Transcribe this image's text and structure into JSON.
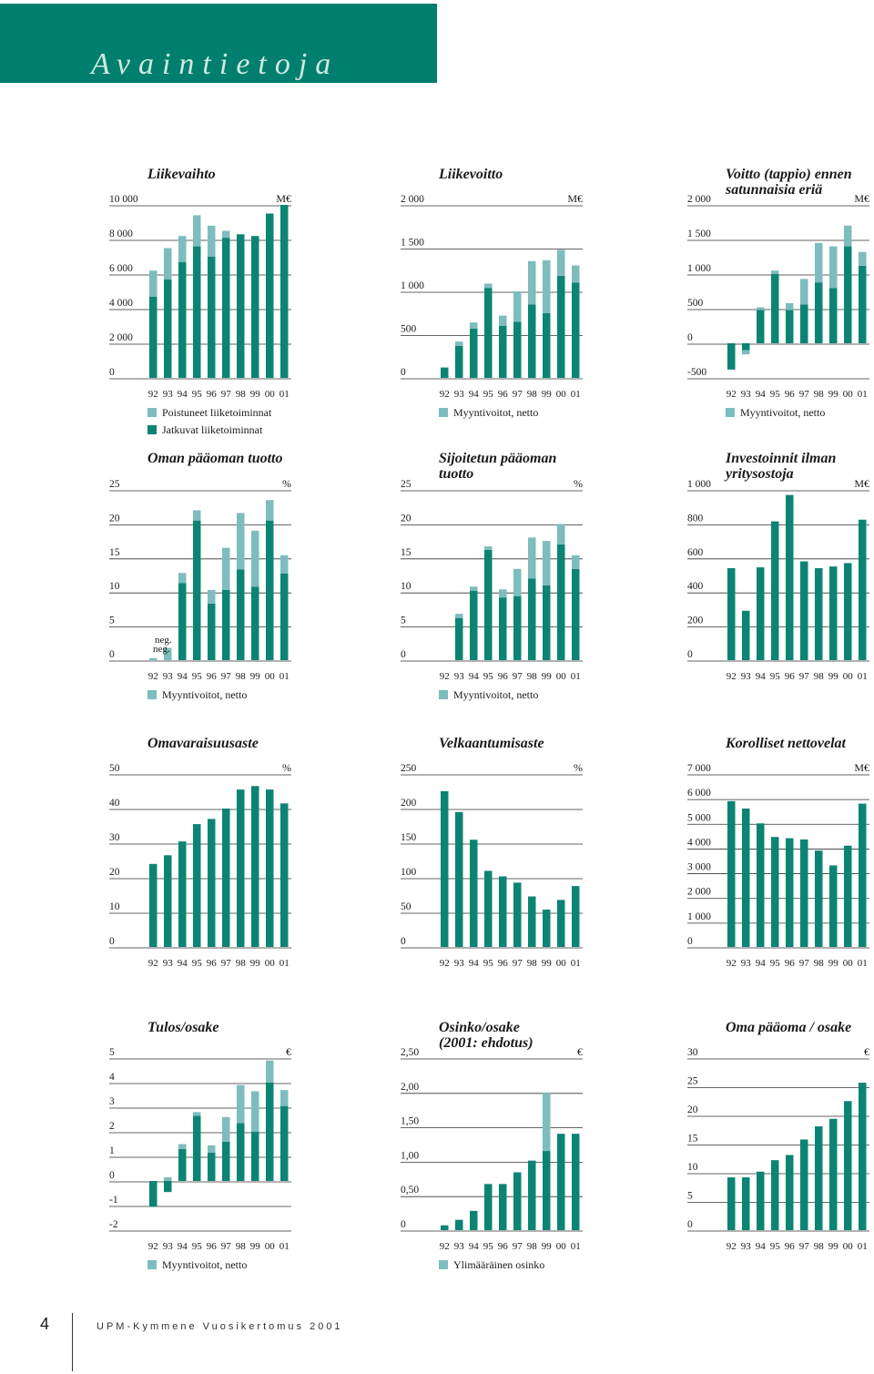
{
  "page": {
    "title": "Avaintietoja",
    "page_number": "4",
    "footer_text": "UPM-Kymmene Vuosikertomus 2001"
  },
  "colors": {
    "continuing": "#0c8474",
    "discontinued": "#7dbdbd",
    "banner": "#007f6e",
    "grid": "#333333"
  },
  "chart_data": [
    {
      "id": "liikevaihto",
      "type": "bar",
      "stacked": true,
      "title": [
        "Liikevaihto"
      ],
      "unit": "M€",
      "categories": [
        "92",
        "93",
        "94",
        "95",
        "96",
        "97",
        "98",
        "99",
        "00",
        "01"
      ],
      "ylim": [
        0,
        10000
      ],
      "yticks": [
        0,
        2000,
        4000,
        6000,
        8000,
        10000
      ],
      "ytick_labels": [
        "0",
        "2 000",
        "4 000",
        "6 000",
        "8 000",
        "10 000"
      ],
      "series": [
        {
          "name": "Jatkuvat liiketoiminnat",
          "color": "#0c8474",
          "values": [
            4700,
            5700,
            6700,
            7600,
            7000,
            8100,
            8300,
            8200,
            9500,
            10000
          ]
        },
        {
          "name": "Poistuneet liiketoiminnat",
          "color": "#7dbdbd",
          "values": [
            1500,
            1800,
            1500,
            1800,
            1800,
            400,
            0,
            0,
            0,
            0
          ]
        }
      ],
      "legend": [
        "Poistuneet liiketoiminnat",
        "Jatkuvat liiketoiminnat"
      ]
    },
    {
      "id": "liikevoitto",
      "type": "bar",
      "stacked": true,
      "title": [
        "Liikevoitto"
      ],
      "unit": "M€",
      "categories": [
        "92",
        "93",
        "94",
        "95",
        "96",
        "97",
        "98",
        "99",
        "00",
        "01"
      ],
      "ylim": [
        0,
        2000
      ],
      "yticks": [
        0,
        500,
        1000,
        1500,
        2000
      ],
      "ytick_labels": [
        "0",
        "500",
        "1 000",
        "1 500",
        "2 000"
      ],
      "series": [
        {
          "name": "",
          "color": "#0c8474",
          "values": [
            120,
            370,
            570,
            1040,
            600,
            650,
            850,
            750,
            1180,
            1100
          ]
        },
        {
          "name": "Myyntivoitot, netto",
          "color": "#7dbdbd",
          "values": [
            0,
            50,
            70,
            50,
            120,
            350,
            500,
            610,
            300,
            200
          ]
        }
      ],
      "legend": [
        "Myyntivoitot, netto"
      ]
    },
    {
      "id": "voitto",
      "type": "bar",
      "stacked": true,
      "title": [
        "Voitto (tappio) ennen",
        "satunnaisia eriä"
      ],
      "unit": "M€",
      "categories": [
        "92",
        "93",
        "94",
        "95",
        "96",
        "97",
        "98",
        "99",
        "00",
        "01"
      ],
      "ylim": [
        -500,
        2000
      ],
      "yticks": [
        -500,
        0,
        500,
        1000,
        1500,
        2000
      ],
      "ytick_labels": [
        "-500",
        "0",
        "500",
        "1 000",
        "1 500",
        "2 000"
      ],
      "series": [
        {
          "name": "",
          "color": "#0c8474",
          "values": [
            -380,
            -100,
            480,
            1000,
            480,
            560,
            880,
            800,
            1400,
            1120
          ]
        },
        {
          "name": "Myyntivoitot, netto",
          "color": "#7dbdbd",
          "values": [
            0,
            -60,
            40,
            50,
            100,
            370,
            570,
            600,
            300,
            200
          ]
        }
      ],
      "legend": [
        "Myyntivoitot, netto"
      ]
    },
    {
      "id": "oman_paaoman_tuotto",
      "type": "bar",
      "stacked": true,
      "title": [
        "Oman pääoman tuotto"
      ],
      "unit": "%",
      "categories": [
        "92",
        "93",
        "94",
        "95",
        "96",
        "97",
        "98",
        "99",
        "00",
        "01"
      ],
      "ylim": [
        0,
        25
      ],
      "yticks": [
        0,
        5,
        10,
        15,
        20,
        25
      ],
      "ytick_labels": [
        "0",
        "5",
        "10",
        "15",
        "20",
        "25"
      ],
      "series": [
        {
          "name": "",
          "color": "#0c8474",
          "values": [
            0,
            0,
            11.3,
            20.5,
            8.3,
            10.3,
            13.3,
            10.8,
            20.5,
            12.7
          ]
        },
        {
          "name": "Myyntivoitot, netto",
          "color": "#7dbdbd",
          "values": [
            0.3,
            1.8,
            1.5,
            1.5,
            2.0,
            6.2,
            8.3,
            8.2,
            3.0,
            2.7
          ]
        }
      ],
      "annotations": [
        {
          "category": "92",
          "text": "neg."
        },
        {
          "category": "93",
          "text": "neg."
        }
      ],
      "legend": [
        "Myyntivoitot, netto"
      ]
    },
    {
      "id": "sijoitetun_paaoman_tuotto",
      "type": "bar",
      "stacked": true,
      "title": [
        "Sijoitetun pääoman",
        "tuotto"
      ],
      "unit": "%",
      "categories": [
        "92",
        "93",
        "94",
        "95",
        "96",
        "97",
        "98",
        "99",
        "00",
        "01"
      ],
      "ylim": [
        0,
        25
      ],
      "yticks": [
        0,
        5,
        10,
        15,
        20,
        25
      ],
      "ytick_labels": [
        "0",
        "5",
        "10",
        "15",
        "20",
        "25"
      ],
      "series": [
        {
          "name": "",
          "color": "#0c8474",
          "values": [
            0,
            6.2,
            10.2,
            16.2,
            9.2,
            9.4,
            12.0,
            11.0,
            17.0,
            13.4
          ]
        },
        {
          "name": "Myyntivoitot, netto",
          "color": "#7dbdbd",
          "values": [
            0,
            0.6,
            0.6,
            0.5,
            1.2,
            4.0,
            6.0,
            6.5,
            3.0,
            2.0
          ]
        }
      ],
      "legend": [
        "Myyntivoitot, netto"
      ]
    },
    {
      "id": "investoinnit",
      "type": "bar",
      "stacked": false,
      "title": [
        "Investoinnit ilman",
        "yritysostoja"
      ],
      "unit": "M€",
      "categories": [
        "92",
        "93",
        "94",
        "95",
        "96",
        "97",
        "98",
        "99",
        "00",
        "01"
      ],
      "ylim": [
        0,
        1000
      ],
      "yticks": [
        0,
        200,
        400,
        600,
        800,
        1000
      ],
      "ytick_labels": [
        "0",
        "200",
        "400",
        "600",
        "800",
        "1 000"
      ],
      "series": [
        {
          "name": "",
          "color": "#0c8474",
          "values": [
            540,
            290,
            545,
            815,
            970,
            580,
            540,
            550,
            570,
            825
          ]
        }
      ],
      "legend": []
    },
    {
      "id": "omavaraisuusaste",
      "type": "bar",
      "stacked": false,
      "title": [
        "Omavaraisuusaste"
      ],
      "unit": "%",
      "categories": [
        "92",
        "93",
        "94",
        "95",
        "96",
        "97",
        "98",
        "99",
        "00",
        "01"
      ],
      "ylim": [
        0,
        50
      ],
      "yticks": [
        0,
        10,
        20,
        30,
        40,
        50
      ],
      "ytick_labels": [
        "0",
        "10",
        "20",
        "30",
        "40",
        "50"
      ],
      "series": [
        {
          "name": "",
          "color": "#0c8474",
          "values": [
            24,
            26.5,
            30.5,
            35.5,
            37,
            40,
            45.5,
            46.5,
            45.5,
            41.5
          ]
        }
      ],
      "legend": []
    },
    {
      "id": "velkaantumisaste",
      "type": "bar",
      "stacked": false,
      "title": [
        "Velkaantumisaste"
      ],
      "unit": "%",
      "categories": [
        "92",
        "93",
        "94",
        "95",
        "96",
        "97",
        "98",
        "99",
        "00",
        "01"
      ],
      "ylim": [
        0,
        250
      ],
      "yticks": [
        0,
        50,
        100,
        150,
        200,
        250
      ],
      "ytick_labels": [
        "0",
        "50",
        "100",
        "150",
        "200",
        "250"
      ],
      "series": [
        {
          "name": "",
          "color": "#0c8474",
          "values": [
            225,
            195,
            155,
            110,
            102,
            93,
            73,
            54,
            68,
            88
          ]
        }
      ],
      "legend": []
    },
    {
      "id": "korolliset_nettovelat",
      "type": "bar",
      "stacked": false,
      "title": [
        "Korolliset nettovelat"
      ],
      "unit": "M€",
      "categories": [
        "92",
        "93",
        "94",
        "95",
        "96",
        "97",
        "98",
        "99",
        "00",
        "01"
      ],
      "ylim": [
        0,
        7000
      ],
      "yticks": [
        0,
        1000,
        2000,
        3000,
        4000,
        5000,
        6000,
        7000
      ],
      "ytick_labels": [
        "0",
        "1 000",
        "2 000",
        "3 000",
        "4 000",
        "5 000",
        "6 000",
        "7 000"
      ],
      "axis_range_label": [
        0,
        7000
      ],
      "series": [
        {
          "name": "",
          "color": "#0c8474",
          "values": [
            5900,
            5600,
            5000,
            4450,
            4400,
            4350,
            3900,
            3300,
            4100,
            5800
          ]
        }
      ],
      "legend": []
    },
    {
      "id": "tulos_osake",
      "type": "bar",
      "stacked": true,
      "title": [
        "Tulos/osake"
      ],
      "unit": "€",
      "categories": [
        "92",
        "93",
        "94",
        "95",
        "96",
        "97",
        "98",
        "99",
        "00",
        "01"
      ],
      "ylim": [
        -2,
        5
      ],
      "yticks": [
        -2,
        -1,
        0,
        1,
        2,
        3,
        4,
        5
      ],
      "ytick_labels": [
        "-2",
        "-1",
        "0",
        "1",
        "2",
        "3",
        "4",
        "5"
      ],
      "series": [
        {
          "name": "",
          "color": "#0c8474",
          "values": [
            -1.05,
            -0.45,
            1.3,
            2.65,
            1.15,
            1.6,
            2.35,
            2.0,
            4.0,
            3.05
          ]
        },
        {
          "name": "Myyntivoitot, netto",
          "color": "#7dbdbd",
          "values": [
            0,
            0.15,
            0.2,
            0.15,
            0.3,
            1.0,
            1.55,
            1.65,
            0.9,
            0.65
          ]
        }
      ],
      "legend": [
        "Myyntivoitot, netto"
      ]
    },
    {
      "id": "osinko_osake",
      "type": "bar",
      "stacked": true,
      "title": [
        "Osinko/osake",
        "(2001: ehdotus)"
      ],
      "unit": "€",
      "categories": [
        "92",
        "93",
        "94",
        "95",
        "96",
        "97",
        "98",
        "99",
        "00",
        "01"
      ],
      "ylim": [
        0,
        2.5
      ],
      "yticks": [
        0,
        0.5,
        1.0,
        1.5,
        2.0,
        2.5
      ],
      "ytick_labels": [
        "0",
        "0,50",
        "1,00",
        "1,50",
        "2,00",
        "2,50"
      ],
      "series": [
        {
          "name": "",
          "color": "#0c8474",
          "values": [
            0.07,
            0.15,
            0.28,
            0.67,
            0.67,
            0.84,
            1.01,
            1.15,
            1.4,
            1.4
          ]
        },
        {
          "name": "Ylimääräinen osinko",
          "color": "#7dbdbd",
          "values": [
            0,
            0,
            0,
            0,
            0,
            0,
            0,
            0.85,
            0,
            0
          ]
        }
      ],
      "legend": [
        "Ylimääräinen osinko"
      ]
    },
    {
      "id": "oma_paaoma_osake",
      "type": "bar",
      "stacked": false,
      "title": [
        "Oma pääoma / osake"
      ],
      "unit": "€",
      "categories": [
        "92",
        "93",
        "94",
        "95",
        "96",
        "97",
        "98",
        "99",
        "00",
        "01"
      ],
      "ylim": [
        0,
        30
      ],
      "yticks": [
        0,
        5,
        10,
        15,
        20,
        25,
        30
      ],
      "ytick_labels": [
        "0",
        "5",
        "10",
        "15",
        "20",
        "25",
        "30"
      ],
      "series": [
        {
          "name": "",
          "color": "#0c8474",
          "values": [
            9.2,
            9.2,
            10.2,
            12.2,
            13.1,
            15.8,
            18.1,
            19.4,
            22.5,
            25.7
          ]
        }
      ],
      "legend": []
    }
  ]
}
